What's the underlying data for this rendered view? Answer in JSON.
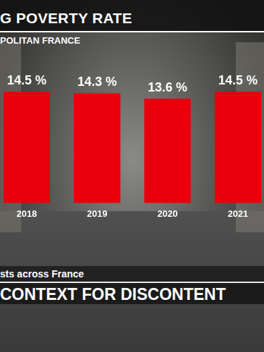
{
  "chart_data": {
    "type": "bar",
    "title": "G POVERTY RATE",
    "subtitle": "POLITAN FRANCE",
    "categories": [
      "2018",
      "2019",
      "2020",
      "2021"
    ],
    "values": [
      14.5,
      14.3,
      13.6,
      14.5
    ],
    "value_labels": [
      "14.5 %",
      "14.3 %",
      "13.6 %",
      "14.5 %"
    ],
    "color": "#e8000d",
    "ylim": [
      0,
      16
    ],
    "grid": false,
    "data_labels": true,
    "tick_labels": "x",
    "annotations": [
      "sts across France",
      "CONTEXT FOR DISCONTENT"
    ]
  }
}
